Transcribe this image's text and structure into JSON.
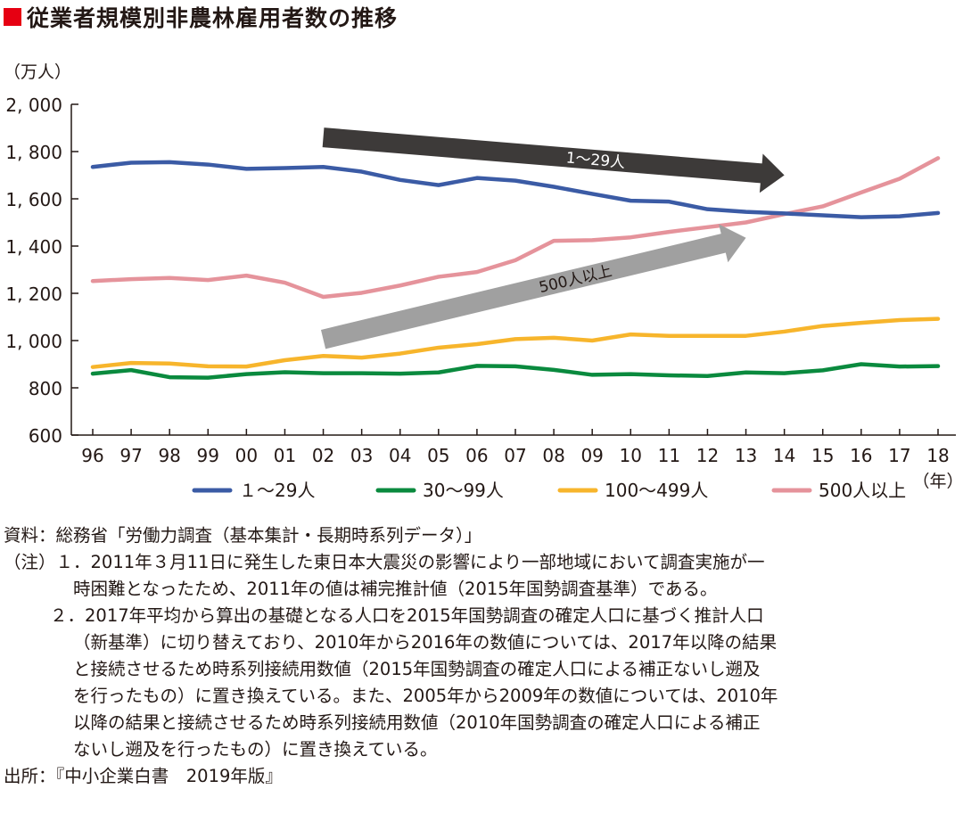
{
  "title": "従業者規模別非農林雇用者数の推移",
  "title_marker_color": "#e60012",
  "chart_data": {
    "type": "line",
    "ylabel": "（万人）",
    "xlabel": "（年）",
    "ylim": [
      600,
      2000
    ],
    "yticks": [
      "2, 000",
      "1, 800",
      "1, 600",
      "1, 400",
      "1, 200",
      "1, 000",
      "800",
      "600"
    ],
    "ytick_values": [
      2000,
      1800,
      1600,
      1400,
      1200,
      1000,
      800,
      600
    ],
    "categories": [
      "96",
      "97",
      "98",
      "99",
      "00",
      "01",
      "02",
      "03",
      "04",
      "05",
      "06",
      "07",
      "08",
      "09",
      "10",
      "11",
      "12",
      "13",
      "14",
      "15",
      "16",
      "17",
      "18"
    ],
    "grid": false,
    "legend_position": "bottom",
    "series": [
      {
        "name": "１～29人",
        "color": "#3b5ba5",
        "values": [
          1735,
          1753,
          1755,
          1745,
          1727,
          1730,
          1735,
          1715,
          1680,
          1658,
          1688,
          1677,
          1651,
          1621,
          1592,
          1588,
          1556,
          1545,
          1538,
          1530,
          1522,
          1526,
          1540
        ]
      },
      {
        "name": "30～99人",
        "color": "#0a8a3e",
        "values": [
          860,
          875,
          845,
          843,
          858,
          866,
          862,
          862,
          860,
          865,
          893,
          891,
          876,
          855,
          858,
          853,
          850,
          865,
          862,
          874,
          900,
          890,
          892
        ]
      },
      {
        "name": "100～499人",
        "color": "#f7b52c",
        "values": [
          888,
          905,
          903,
          891,
          890,
          917,
          935,
          928,
          945,
          970,
          985,
          1006,
          1012,
          1000,
          1026,
          1020,
          1020,
          1020,
          1038,
          1062,
          1075,
          1087,
          1092
        ]
      },
      {
        "name": "500人以上",
        "color": "#e5939b",
        "values": [
          1252,
          1260,
          1265,
          1256,
          1275,
          1245,
          1185,
          1202,
          1233,
          1270,
          1290,
          1340,
          1422,
          1425,
          1437,
          1460,
          1480,
          1500,
          1535,
          1568,
          1627,
          1685,
          1772
        ]
      }
    ],
    "annotations": [
      {
        "label": "1～29人",
        "color": "#3d3a39",
        "from": [
          "02",
          1860
        ],
        "to": [
          "14",
          1700
        ]
      },
      {
        "label": "500人以上",
        "color": "#a0a0a0",
        "from": [
          "02",
          1005
        ],
        "to": [
          "13",
          1435
        ]
      }
    ]
  },
  "notes": [
    "資料：総務省「労働力調査（基本集計・長期時系列データ）」",
    "（注）１．2011年３月11日に発生した東日本大震災の影響により一部地域において調査実施が一",
    "時困難となったため、2011年の値は補完推計値（2015年国勢調査基準）である。",
    "２．2017年平均から算出の基礎となる人口を2015年国勢調査の確定人口に基づく推計人口",
    "（新基準）に切り替えており、2010年から2016年の数値については、2017年以降の結果",
    "と接続させるため時系列接続用数値（2015年国勢調査の確定人口による補正ないし遡及",
    "を行ったもの）に置き換えている。また、2005年から2009年の数値については、2010年",
    "以降の結果と接続させるため時系列接続用数値（2010年国勢調査の確定人口による補正",
    "ないし遡及を行ったもの）に置き換えている。",
    "出所：『中小企業白書　2019年版』"
  ]
}
